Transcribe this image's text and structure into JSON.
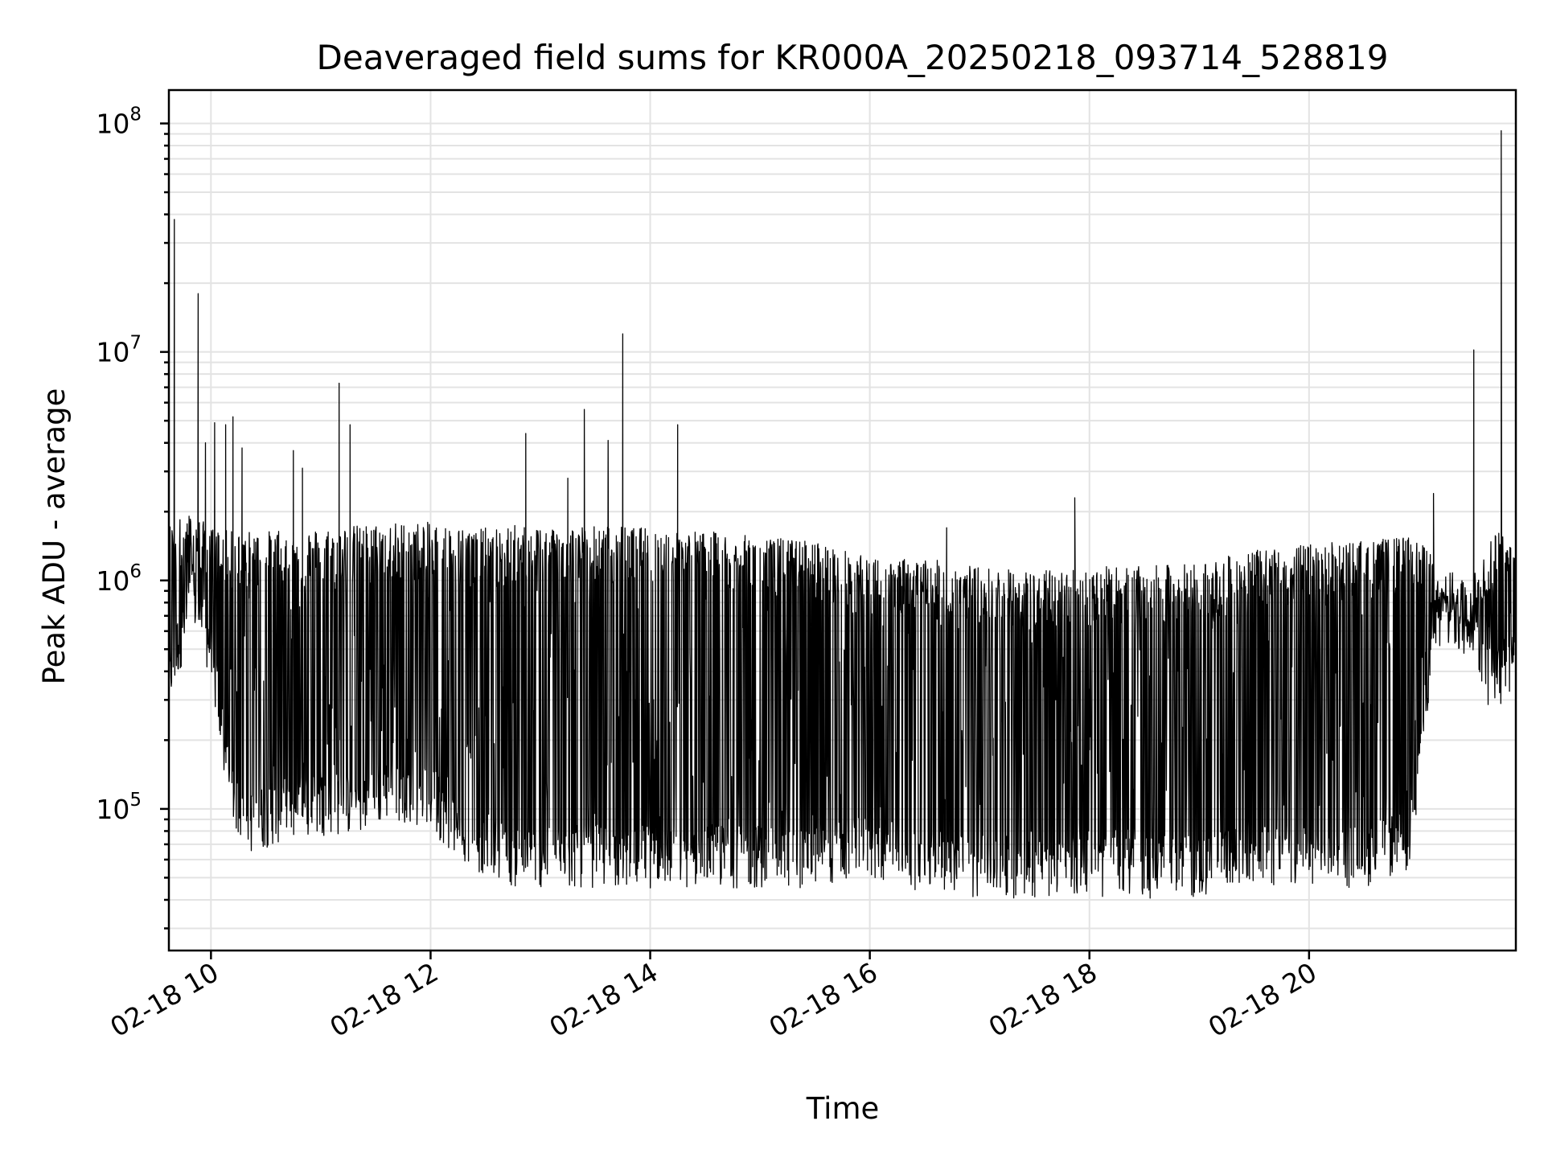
{
  "chart_data": {
    "type": "line",
    "title": "Deaveraged field sums for KR000A_20250218_093714_528819",
    "xlabel": "Time",
    "ylabel": "Peak ADU - average",
    "xscale": "time",
    "yscale": "log",
    "grid": true,
    "legend": "none",
    "xlim": [
      "2025-02-18 09:37",
      "2025-02-18 21:53"
    ],
    "ylim": [
      24000,
      140000000
    ],
    "x_ticks": [
      "02-18 10",
      "02-18 12",
      "02-18 14",
      "02-18 16",
      "02-18 18",
      "02-18 20"
    ],
    "y_ticks": [
      {
        "base": "10",
        "exp": "5",
        "value": 100000
      },
      {
        "base": "10",
        "exp": "6",
        "value": 1000000
      },
      {
        "base": "10",
        "exp": "7",
        "value": 10000000
      },
      {
        "base": "10",
        "exp": "8",
        "value": 100000000
      }
    ],
    "series": [
      {
        "color": "#000000",
        "envelope": {
          "time": [
            "09:37",
            "09:50",
            "10:00",
            "10:10",
            "10:20",
            "10:40",
            "11:00",
            "11:20",
            "11:40",
            "12:00",
            "12:20",
            "12:40",
            "12:45",
            "13:00",
            "13:30",
            "14:00",
            "14:30",
            "15:00",
            "15:30",
            "16:00",
            "16:30",
            "17:00",
            "17:30",
            "18:00",
            "18:30",
            "19:00",
            "19:30",
            "20:00",
            "20:30",
            "20:55",
            "21:05",
            "21:15",
            "21:25",
            "21:40",
            "21:53"
          ],
          "upper": [
            1800000,
            2000000,
            1700000,
            1650000,
            1650000,
            1650000,
            1700000,
            1750000,
            1800000,
            1800000,
            1700000,
            1700000,
            1750000,
            1750000,
            1750000,
            1700000,
            1650000,
            1550000,
            1500000,
            1250000,
            1250000,
            1150000,
            1100000,
            1150000,
            1150000,
            1200000,
            1350000,
            1450000,
            1500000,
            1550000,
            1400000,
            900000,
            850000,
            1600000,
            1800000
          ],
          "lower": [
            300000,
            700000,
            400000,
            100000,
            70000,
            80000,
            85000,
            85000,
            100000,
            90000,
            60000,
            55000,
            50000,
            50000,
            50000,
            50000,
            50000,
            50000,
            50000,
            55000,
            48000,
            45000,
            45000,
            45000,
            45000,
            45000,
            50000,
            50000,
            50000,
            60000,
            300000,
            750000,
            650000,
            280000,
            380000
          ]
        },
        "baseline": {
          "time": [
            "09:37",
            "09:50",
            "10:00",
            "10:10",
            "10:20",
            "10:40",
            "11:00",
            "11:20",
            "11:40",
            "12:00",
            "12:20",
            "12:40",
            "13:00",
            "13:30",
            "14:00",
            "14:30",
            "15:00",
            "15:30",
            "16:00",
            "16:30",
            "17:00",
            "17:30",
            "18:00",
            "18:30",
            "19:00",
            "19:30",
            "20:00",
            "20:30",
            "20:55",
            "21:05",
            "21:15",
            "21:25",
            "21:40",
            "21:53"
          ],
          "value": [
            1100000,
            1300000,
            500000,
            180000,
            120000,
            120000,
            130000,
            150000,
            150000,
            120000,
            100000,
            90000,
            80000,
            75000,
            70000,
            70000,
            70000,
            70000,
            70000,
            65000,
            62000,
            60000,
            60000,
            62000,
            65000,
            70000,
            75000,
            80000,
            90000,
            500000,
            850000,
            800000,
            600000,
            700000
          ]
        },
        "spikes": [
          {
            "time": "09:40",
            "value": 38000000
          },
          {
            "time": "09:53",
            "value": 18000000
          },
          {
            "time": "09:57",
            "value": 4000000
          },
          {
            "time": "10:02",
            "value": 4900000
          },
          {
            "time": "10:08",
            "value": 4800000
          },
          {
            "time": "10:12",
            "value": 5200000
          },
          {
            "time": "10:17",
            "value": 3800000
          },
          {
            "time": "10:45",
            "value": 3700000
          },
          {
            "time": "10:50",
            "value": 3100000
          },
          {
            "time": "11:10",
            "value": 7300000
          },
          {
            "time": "11:16",
            "value": 4800000
          },
          {
            "time": "12:52",
            "value": 4400000
          },
          {
            "time": "13:15",
            "value": 2800000
          },
          {
            "time": "13:24",
            "value": 5600000
          },
          {
            "time": "13:37",
            "value": 4100000
          },
          {
            "time": "13:45",
            "value": 12000000
          },
          {
            "time": "14:15",
            "value": 4800000
          },
          {
            "time": "16:42",
            "value": 1700000
          },
          {
            "time": "17:52",
            "value": 2300000
          },
          {
            "time": "21:08",
            "value": 2400000
          },
          {
            "time": "21:30",
            "value": 10200000
          },
          {
            "time": "21:45",
            "value": 93000000
          }
        ]
      }
    ]
  }
}
